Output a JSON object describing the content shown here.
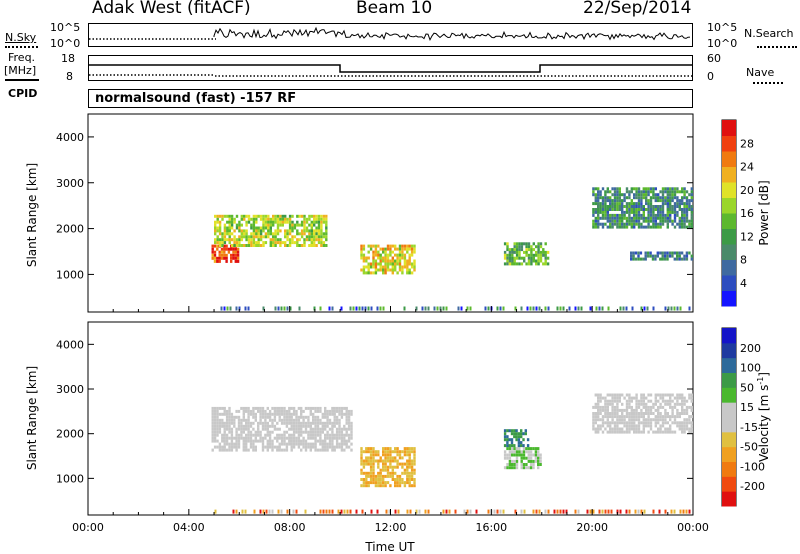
{
  "header": {
    "station": "Adak West (fitACF)",
    "beam": "Beam 10",
    "date": "22/Sep/2014"
  },
  "sky_panel": {
    "left_label": "N.Sky",
    "right_label": "N.Search",
    "left_ticks": [
      "10^5",
      "10^0"
    ],
    "right_ticks": [
      "10^5",
      "10^0"
    ]
  },
  "freq_panel": {
    "left_label_1": "Freq.",
    "left_label_2": "[MHz]",
    "cpid_label": "CPID",
    "right_label": "Nave",
    "left_ticks": [
      "18",
      "8"
    ],
    "right_ticks": [
      "60",
      "0"
    ],
    "cpid_text": "normalsound (fast) -157 RF"
  },
  "colors": {
    "power_scale": [
      "#1414ff",
      "#2d4dbf",
      "#3f6aa0",
      "#4a8a6a",
      "#3c9a46",
      "#5cb82e",
      "#9ad62a",
      "#e0e228",
      "#f0b020",
      "#f07a10",
      "#f04010",
      "#e01010"
    ],
    "velocity_scale": [
      "#e01010",
      "#f04a10",
      "#f07a10",
      "#f0a020",
      "#e0c040",
      "#c8c8c8",
      "#c8c8c8",
      "#4ab82e",
      "#3c9a46",
      "#2d6a9a",
      "#1e3aa0",
      "#1414c8"
    ]
  },
  "chart_data": [
    {
      "type": "heatmap",
      "title": "",
      "xlabel": "Time UT",
      "ylabel": "Slant Range [km]",
      "colorbar_label": "Power [dB]",
      "x_ticks": [
        "00:00",
        "04:00",
        "08:00",
        "12:00",
        "16:00",
        "20:00",
        "00:00"
      ],
      "y_ticks": [
        "1000",
        "2000",
        "3000",
        "4000"
      ],
      "ylim": [
        180,
        4500
      ],
      "colorbar_ticks": [
        "4",
        "8",
        "12",
        "16",
        "20",
        "24",
        "28"
      ],
      "clim": [
        0,
        32
      ],
      "features": [
        {
          "t_start": 4.9,
          "t_end": 6.0,
          "range_start": 1250,
          "range_end": 1650,
          "value": 28
        },
        {
          "t_start": 5.0,
          "t_end": 9.5,
          "range_start": 1600,
          "range_end": 2300,
          "value": 18
        },
        {
          "t_start": 10.8,
          "t_end": 13.0,
          "range_start": 1000,
          "range_end": 1650,
          "value": 20
        },
        {
          "t_start": 16.5,
          "t_end": 18.3,
          "range_start": 1200,
          "range_end": 1700,
          "value": 14
        },
        {
          "t_start": 20.0,
          "t_end": 24.0,
          "range_start": 2000,
          "range_end": 2900,
          "value": 10
        },
        {
          "t_start": 21.5,
          "t_end": 24.0,
          "range_start": 1300,
          "range_end": 1500,
          "value": 8
        }
      ]
    },
    {
      "type": "heatmap",
      "title": "",
      "xlabel": "Time UT",
      "ylabel": "Slant Range [km]",
      "colorbar_label": "Velocity [m s^-1]",
      "x_ticks": [
        "00:00",
        "04:00",
        "08:00",
        "12:00",
        "16:00",
        "20:00",
        "00:00"
      ],
      "y_ticks": [
        "1000",
        "2000",
        "3000",
        "4000"
      ],
      "ylim": [
        180,
        4500
      ],
      "colorbar_ticks": [
        "-200",
        "-100",
        "-50",
        "-15",
        "15",
        "50",
        "100",
        "200"
      ],
      "features": [
        {
          "t_start": 4.9,
          "t_end": 10.5,
          "range_start": 1600,
          "range_end": 2600,
          "value": 0
        },
        {
          "t_start": 10.8,
          "t_end": 13.0,
          "range_start": 800,
          "range_end": 1700,
          "value": -80
        },
        {
          "t_start": 16.5,
          "t_end": 18.0,
          "range_start": 1200,
          "range_end": 1700,
          "value": 40
        },
        {
          "t_start": 16.5,
          "t_end": 17.5,
          "range_start": 1700,
          "range_end": 2100,
          "value": 120
        },
        {
          "t_start": 20.0,
          "t_end": 24.0,
          "range_start": 2000,
          "range_end": 2900,
          "value": 0
        }
      ]
    }
  ]
}
